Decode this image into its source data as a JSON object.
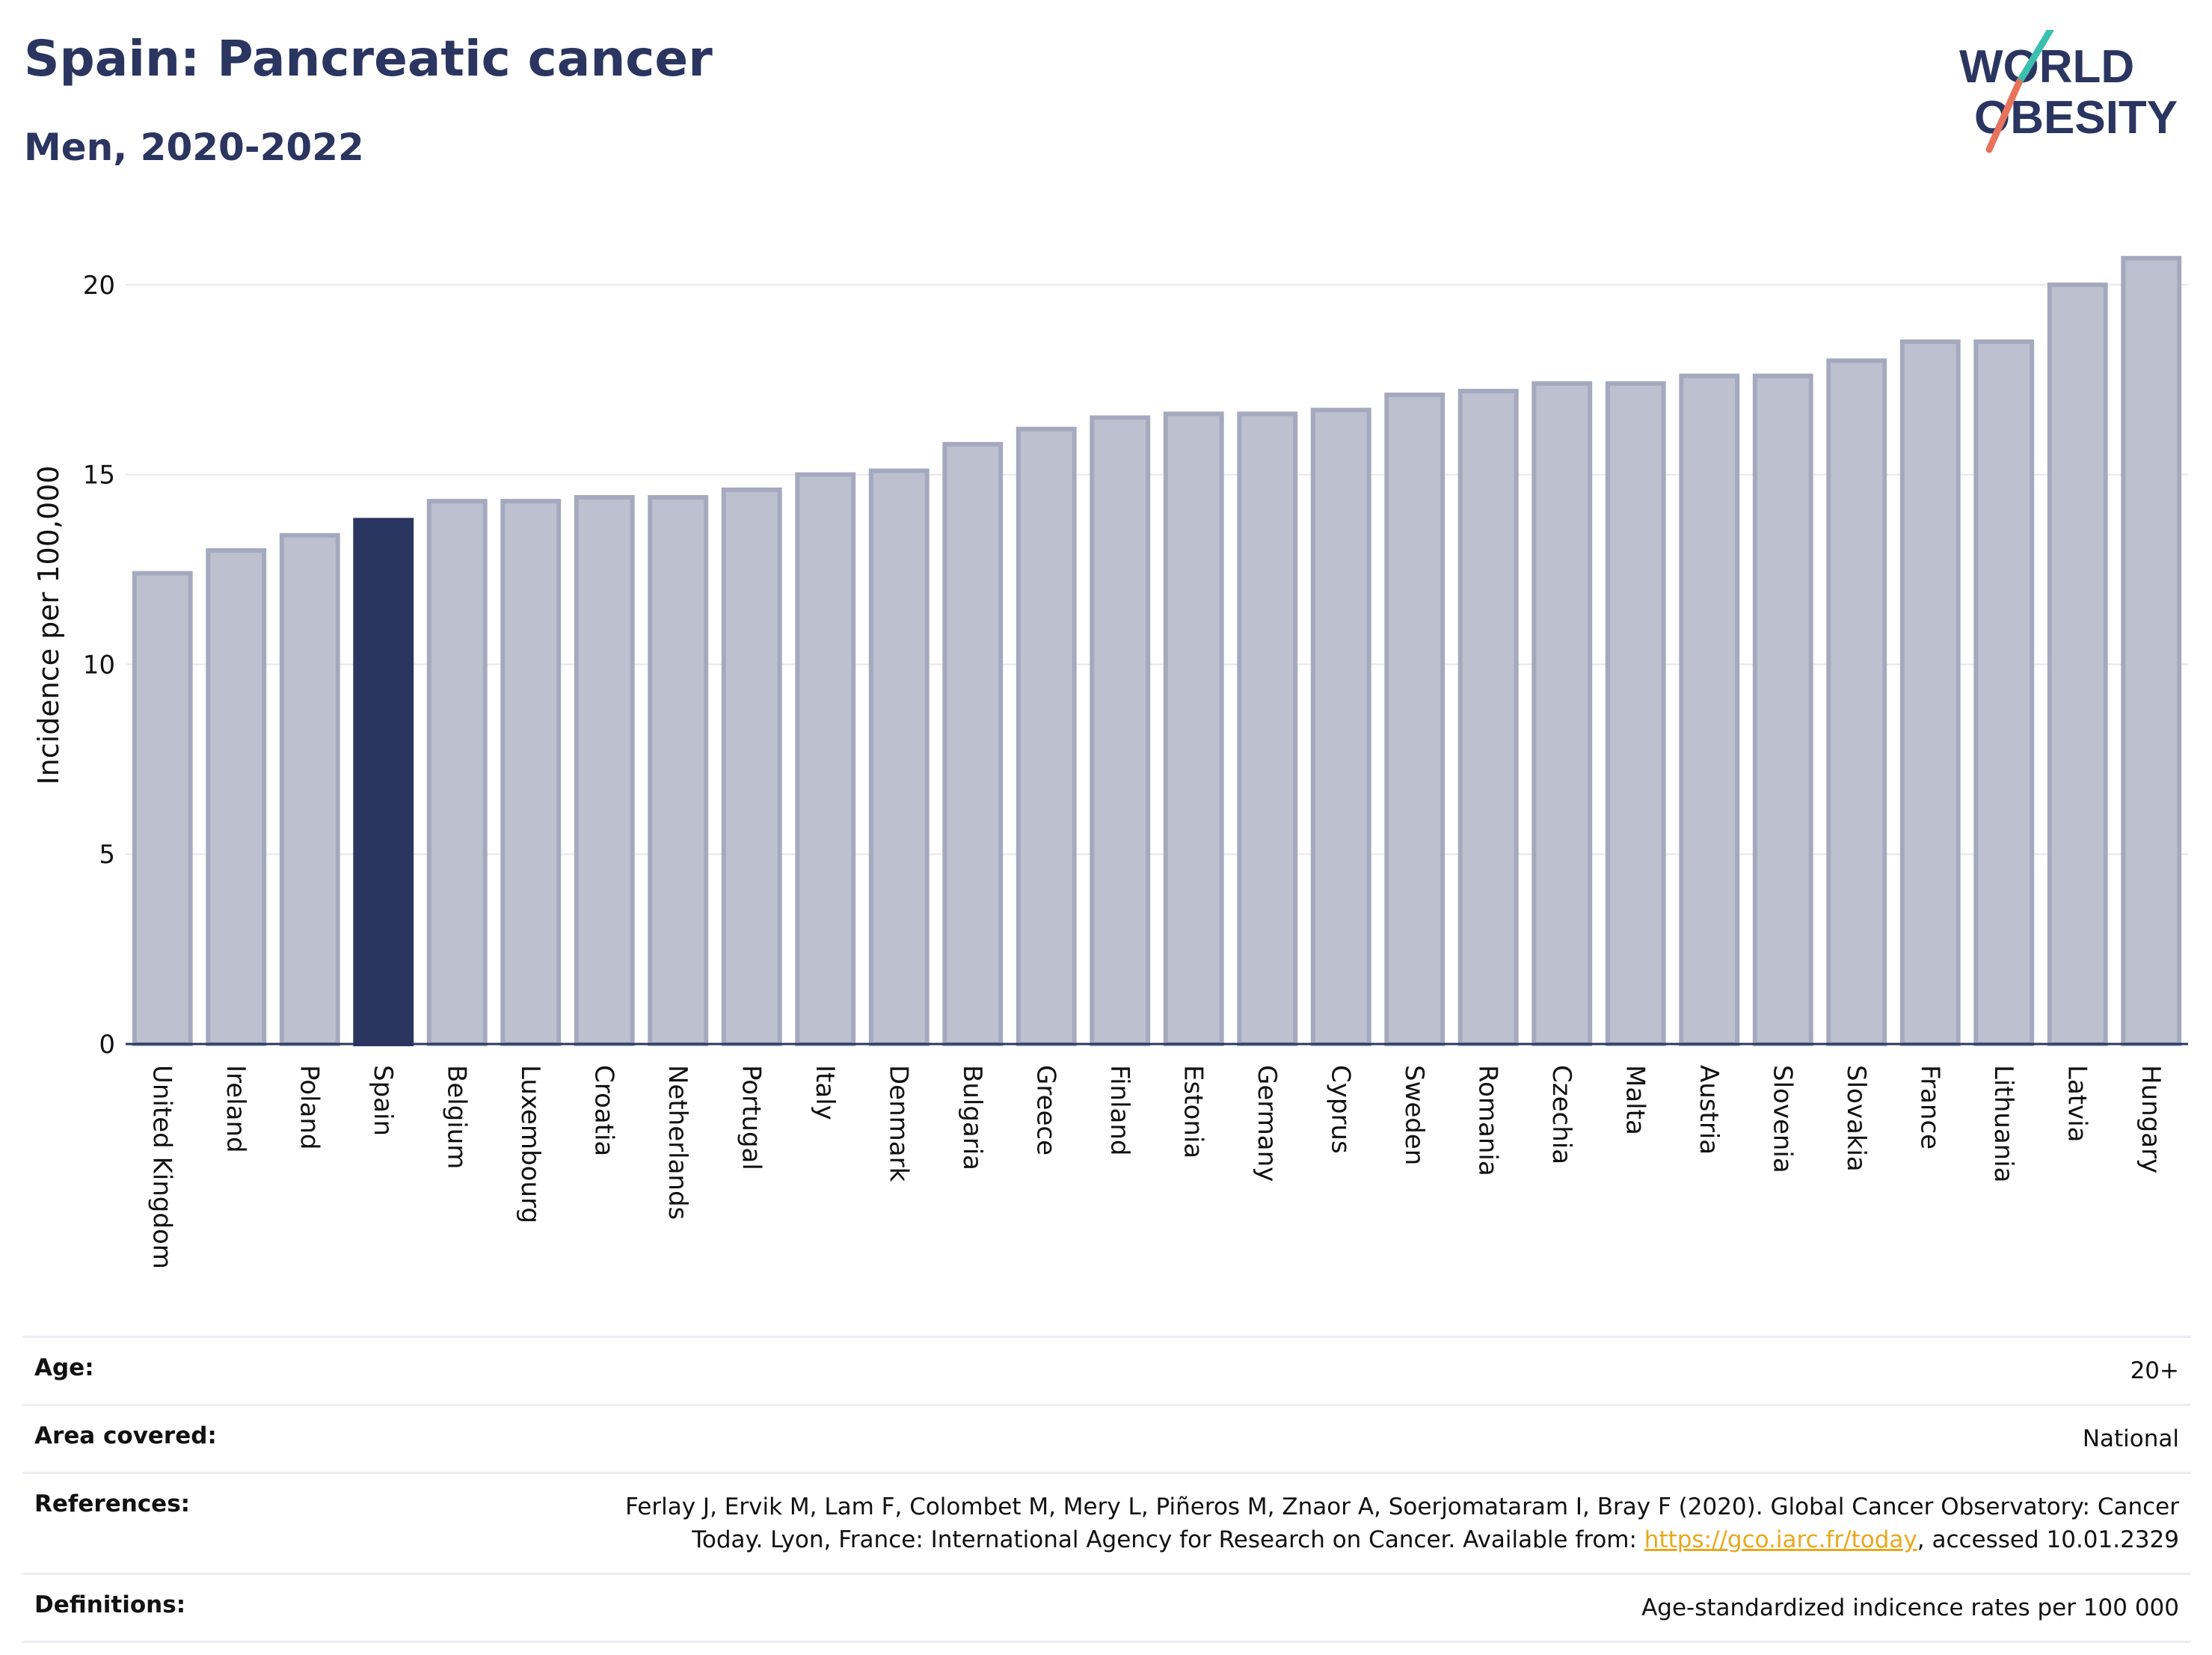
{
  "header": {
    "title": "Spain: Pancreatic cancer",
    "subtitle": "Men, 2020-2022"
  },
  "logo": {
    "line1": "WORLD",
    "line2": "OBESITY",
    "accent_teal": "#3cbfae",
    "accent_coral": "#e8735d",
    "text_color": "#2a3560"
  },
  "colors": {
    "bar_default": "#bdc1cf",
    "bar_default_stroke": "#a4a9be",
    "bar_highlight": "#2a3560",
    "axis": "#2a3560",
    "grid": "#e6e8ef"
  },
  "chart_data": {
    "type": "bar",
    "title": "Spain: Pancreatic cancer",
    "subtitle": "Men, 2020-2022",
    "ylabel": "Incidence per 100,000",
    "xlabel": "",
    "ylim": [
      0,
      21
    ],
    "yticks": [
      0,
      5,
      10,
      15,
      20
    ],
    "grid": true,
    "highlight": "Spain",
    "categories": [
      "United Kingdom",
      "Ireland",
      "Poland",
      "Spain",
      "Belgium",
      "Luxembourg",
      "Croatia",
      "Netherlands",
      "Portugal",
      "Italy",
      "Denmark",
      "Bulgaria",
      "Greece",
      "Finland",
      "Estonia",
      "Germany",
      "Cyprus",
      "Sweden",
      "Romania",
      "Czechia",
      "Malta",
      "Austria",
      "Slovenia",
      "Slovakia",
      "France",
      "Lithuania",
      "Latvia",
      "Hungary"
    ],
    "values": [
      12.4,
      13.0,
      13.4,
      13.8,
      14.3,
      14.3,
      14.4,
      14.4,
      14.6,
      15.0,
      15.1,
      15.8,
      16.2,
      16.5,
      16.6,
      16.6,
      16.7,
      17.1,
      17.2,
      17.4,
      17.4,
      17.6,
      17.6,
      18.0,
      18.5,
      18.5,
      20.0,
      20.7
    ]
  },
  "meta": {
    "age_label": "Age:",
    "age_value": "20+",
    "area_label": "Area covered:",
    "area_value": "National",
    "references_label": "References:",
    "references_line1": "Ferlay J, Ervik M, Lam F, Colombet M, Mery L, Piñeros M, Znaor A, Soerjomataram I, Bray F (2020). Global Cancer Observatory: Cancer",
    "references_line2_pre": "Today. Lyon, France: International Agency for Research on Cancer. Available from: ",
    "references_link": "https://gco.iarc.fr/today",
    "references_line2_post": ", accessed 10.01.2329",
    "definitions_label": "Definitions:",
    "definitions_value": "Age-standardized indicence rates per 100 000"
  }
}
